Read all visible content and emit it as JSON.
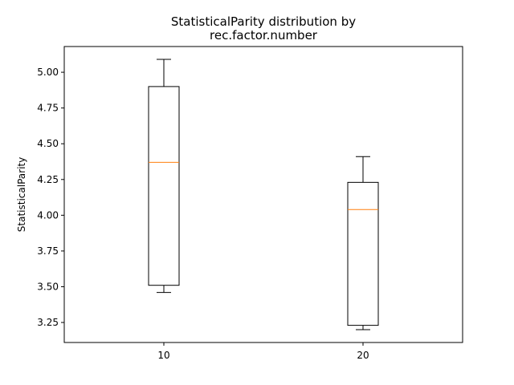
{
  "chart_data": {
    "type": "box",
    "title": "StatisticalParity distribution by\nrec.factor.number",
    "title_lines": [
      "StatisticalParity distribution by",
      "rec.factor.number"
    ],
    "xlabel": "",
    "ylabel": "StatisticalParity",
    "categories": [
      "10",
      "20"
    ],
    "ylim": [
      3.11,
      5.18
    ],
    "yticks": [
      3.25,
      3.5,
      3.75,
      4.0,
      4.25,
      4.5,
      4.75,
      5.0
    ],
    "ytick_labels": [
      "3.25",
      "3.50",
      "3.75",
      "4.00",
      "4.25",
      "4.50",
      "4.75",
      "5.00"
    ],
    "boxes": [
      {
        "category": "10",
        "whisker_low": 3.46,
        "q1": 3.51,
        "median": 4.37,
        "q3": 4.9,
        "whisker_high": 5.09
      },
      {
        "category": "20",
        "whisker_low": 3.2,
        "q1": 3.23,
        "median": 4.04,
        "q3": 4.23,
        "whisker_high": 4.41
      }
    ],
    "grid": false,
    "colors": {
      "box": "#000000",
      "median": "#ff7f0e"
    }
  }
}
